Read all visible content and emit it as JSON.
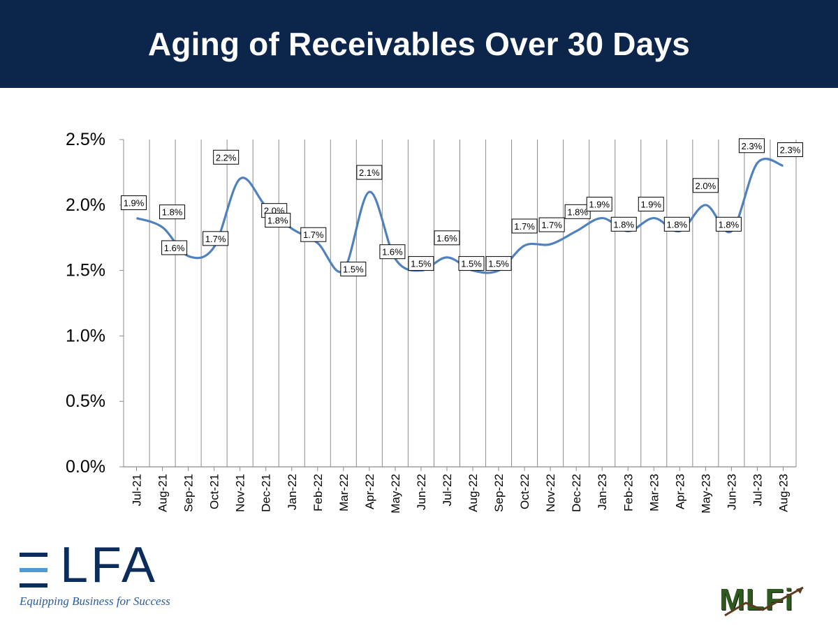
{
  "header": {
    "title": "Aging of Receivables Over 30 Days"
  },
  "colors": {
    "header_bg": "#0c254a",
    "line": "#4f81bd",
    "grid": "#8c8c8c",
    "elfa_blue": "#0c2d5c",
    "elfa_light": "#4f9bd9",
    "mlfi_green": "#2f5a1e"
  },
  "logos": {
    "elfa": {
      "name": "ELFA",
      "tagline": "Equipping Business for Success"
    },
    "mlfi": {
      "name": "MLFi"
    }
  },
  "chart_data": {
    "type": "line",
    "title": "",
    "xlabel": "",
    "ylabel": "",
    "ylim": [
      0,
      0.025
    ],
    "yticks": [
      "0.0%",
      "0.5%",
      "1.0%",
      "1.5%",
      "2.0%",
      "2.5%"
    ],
    "grid": "vertical",
    "smooth": true,
    "categories": [
      "Jul-21",
      "Aug-21",
      "Sep-21",
      "Oct-21",
      "Nov-21",
      "Dec-21",
      "Jan-22",
      "Feb-22",
      "Mar-22",
      "Apr-22",
      "May-22",
      "Jun-22",
      "Jul-22",
      "Aug-22",
      "Sep-22",
      "Oct-22",
      "Nov-22",
      "Dec-22",
      "Jan-23",
      "Feb-23",
      "Mar-23",
      "Apr-23",
      "May-23",
      "Jun-23",
      "Jul-23",
      "Aug-23"
    ],
    "series": [
      {
        "values": [
          0.019,
          0.0183,
          0.0161,
          0.0168,
          0.022,
          0.0199,
          0.0182,
          0.0171,
          0.015,
          0.021,
          0.0159,
          0.015,
          0.016,
          0.015,
          0.015,
          0.0169,
          0.017,
          0.018,
          0.019,
          0.018,
          0.019,
          0.018,
          0.02,
          0.018,
          0.0232,
          0.023
        ],
        "labels": [
          "1.9%",
          "1.8%",
          "1.6%",
          "1.7%",
          "2.2%",
          "2.0%",
          "1.8%",
          "1.7%",
          "1.5%",
          "2.1%",
          "1.6%",
          "1.5%",
          "1.6%",
          "1.5%",
          "1.5%",
          "1.7%",
          "1.7%",
          "1.8%",
          "1.9%",
          "1.8%",
          "1.9%",
          "1.8%",
          "2.0%",
          "1.8%",
          "2.3%",
          "2.3%"
        ]
      }
    ]
  }
}
